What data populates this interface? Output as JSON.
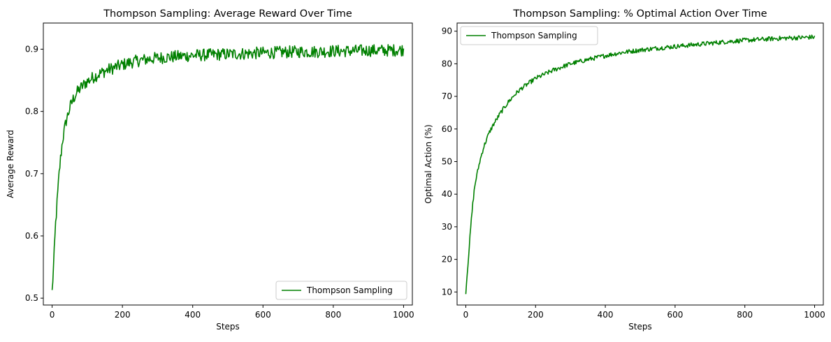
{
  "chart_data": [
    {
      "type": "line",
      "title": "Thompson Sampling: Average Reward Over Time",
      "xlabel": "Steps",
      "ylabel": "Average Reward",
      "xlim": [
        -25,
        1025
      ],
      "ylim": [
        0.489,
        0.942
      ],
      "xticks": [
        0,
        200,
        400,
        600,
        800,
        1000
      ],
      "yticks": [
        0.5,
        0.6,
        0.7,
        0.8,
        0.9
      ],
      "ytick_labels": [
        "0.5",
        "0.6",
        "0.7",
        "0.8",
        "0.9"
      ],
      "legend": "lower-right",
      "grid": false,
      "series": [
        {
          "name": "Thompson Sampling",
          "color": "#008000",
          "x": [
            0,
            5,
            10,
            15,
            20,
            25,
            30,
            40,
            50,
            60,
            70,
            80,
            90,
            100,
            120,
            140,
            160,
            180,
            200,
            225,
            250,
            275,
            300,
            350,
            400,
            450,
            500,
            550,
            600,
            650,
            700,
            750,
            800,
            850,
            900,
            950,
            1000
          ],
          "values": [
            0.51,
            0.56,
            0.62,
            0.66,
            0.7,
            0.73,
            0.755,
            0.785,
            0.805,
            0.82,
            0.83,
            0.837,
            0.843,
            0.848,
            0.856,
            0.862,
            0.867,
            0.871,
            0.875,
            0.879,
            0.882,
            0.884,
            0.886,
            0.888,
            0.89,
            0.891,
            0.892,
            0.893,
            0.894,
            0.895,
            0.896,
            0.896,
            0.897,
            0.897,
            0.898,
            0.898,
            0.899
          ]
        }
      ]
    },
    {
      "type": "line",
      "title": "Thompson Sampling: % Optimal Action Over Time",
      "xlabel": "Steps",
      "ylabel": "Optimal Action (%)",
      "xlim": [
        -25,
        1025
      ],
      "ylim": [
        6,
        92.5
      ],
      "xticks": [
        0,
        200,
        400,
        600,
        800,
        1000
      ],
      "yticks": [
        10,
        20,
        30,
        40,
        50,
        60,
        70,
        80,
        90
      ],
      "ytick_labels": [
        "10",
        "20",
        "30",
        "40",
        "50",
        "60",
        "70",
        "80",
        "90"
      ],
      "legend": "top-left",
      "grid": false,
      "series": [
        {
          "name": "Thompson Sampling",
          "color": "#008000",
          "x": [
            0,
            5,
            10,
            15,
            20,
            25,
            30,
            40,
            50,
            60,
            70,
            80,
            100,
            120,
            140,
            160,
            180,
            200,
            250,
            300,
            350,
            400,
            450,
            500,
            550,
            600,
            650,
            700,
            750,
            800,
            850,
            900,
            950,
            1000
          ],
          "values": [
            10,
            17,
            24,
            31,
            37,
            42,
            45,
            50,
            54,
            57,
            59.5,
            61.5,
            65,
            68,
            70.5,
            72.5,
            74,
            75.5,
            78,
            80,
            81.3,
            82.5,
            83.5,
            84.2,
            84.8,
            85.3,
            85.8,
            86.3,
            86.8,
            87.2,
            87.5,
            87.8,
            88,
            88.2
          ]
        }
      ]
    }
  ]
}
